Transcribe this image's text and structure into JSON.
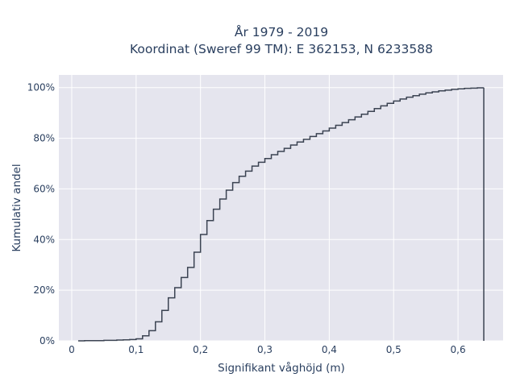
{
  "chart_data": {
    "type": "line",
    "subtype": "cumulative-step",
    "title_lines": [
      "År 1979 - 2019",
      "Koordinat (Sweref 99 TM): E 362153, N 6233588"
    ],
    "xlabel": "Signifikant våghöjd (m)",
    "ylabel": "Kumulativ andel",
    "xlim": [
      -0.02,
      0.67
    ],
    "ylim": [
      0,
      1.05
    ],
    "x_ticks": [
      {
        "value": 0,
        "label": "0"
      },
      {
        "value": 0.1,
        "label": "0,1"
      },
      {
        "value": 0.2,
        "label": "0,2"
      },
      {
        "value": 0.3,
        "label": "0,3"
      },
      {
        "value": 0.4,
        "label": "0,4"
      },
      {
        "value": 0.5,
        "label": "0,5"
      },
      {
        "value": 0.6,
        "label": "0,6"
      }
    ],
    "y_ticks": [
      {
        "value": 0,
        "label": "0%"
      },
      {
        "value": 0.2,
        "label": "20%"
      },
      {
        "value": 0.4,
        "label": "40%"
      },
      {
        "value": 0.6,
        "label": "60%"
      },
      {
        "value": 0.8,
        "label": "80%"
      },
      {
        "value": 1.0,
        "label": "100%"
      }
    ],
    "grid": true,
    "colors": {
      "background": "#e5e5ee",
      "grid": "#ffffff",
      "line": "#3b4352",
      "text": "#2a3f5f"
    },
    "series": [
      {
        "x": [
          0.01,
          0.02,
          0.03,
          0.04,
          0.05,
          0.06,
          0.07,
          0.08,
          0.09,
          0.1,
          0.11,
          0.12,
          0.13,
          0.14,
          0.15,
          0.16,
          0.17,
          0.18,
          0.19,
          0.2,
          0.21,
          0.22,
          0.23,
          0.24,
          0.25,
          0.26,
          0.27,
          0.28,
          0.29,
          0.3,
          0.31,
          0.32,
          0.33,
          0.34,
          0.35,
          0.36,
          0.37,
          0.38,
          0.39,
          0.4,
          0.41,
          0.42,
          0.43,
          0.44,
          0.45,
          0.46,
          0.47,
          0.48,
          0.49,
          0.5,
          0.51,
          0.52,
          0.53,
          0.54,
          0.55,
          0.56,
          0.57,
          0.58,
          0.59,
          0.6,
          0.61,
          0.62,
          0.63,
          0.64
        ],
        "y": [
          0,
          0.001,
          0.001,
          0.001,
          0.002,
          0.002,
          0.003,
          0.004,
          0.005,
          0.008,
          0.02,
          0.04,
          0.075,
          0.12,
          0.17,
          0.21,
          0.25,
          0.29,
          0.35,
          0.42,
          0.475,
          0.52,
          0.56,
          0.595,
          0.625,
          0.65,
          0.67,
          0.69,
          0.705,
          0.72,
          0.735,
          0.748,
          0.76,
          0.773,
          0.785,
          0.796,
          0.807,
          0.818,
          0.829,
          0.84,
          0.851,
          0.862,
          0.873,
          0.884,
          0.895,
          0.906,
          0.917,
          0.928,
          0.938,
          0.947,
          0.955,
          0.962,
          0.968,
          0.974,
          0.979,
          0.983,
          0.987,
          0.99,
          0.993,
          0.995,
          0.997,
          0.998,
          0.999,
          1.0
        ],
        "drop_to_zero_at": 0.64
      }
    ]
  }
}
